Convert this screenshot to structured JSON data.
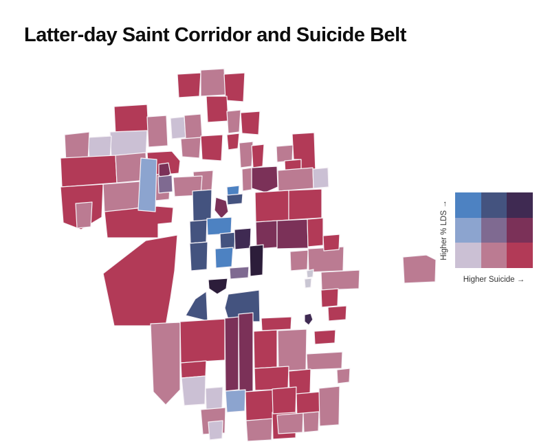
{
  "title": "Latter-day Saint Corridor and Suicide Belt",
  "legend": {
    "y_axis_label": "Higher % LDS →",
    "x_axis_label": "Higher Suicide →",
    "grid": [
      [
        "blue",
        "navy",
        "darkpurple"
      ],
      [
        "lightblue",
        "mutedpurple",
        "wine"
      ],
      [
        "pale",
        "rose",
        "crimson"
      ]
    ]
  },
  "palette": {
    "blue": "#4d82c2",
    "navy": "#44537f",
    "darkpurple": "#3f2a52",
    "lightblue": "#8ca4cf",
    "mutedpurple": "#7f6a91",
    "wine": "#7b3158",
    "pale": "#cbc0d4",
    "rose": "#bb7b92",
    "crimson": "#b23a57",
    "darkest": "#2c1d3a",
    "gray": "#c9c6d3"
  },
  "map": {
    "stroke_color": "#f7f3f7",
    "counties": [
      {
        "f": "crimson",
        "p": "166,155 214,152 216,192 168,196"
      },
      {
        "f": "rose",
        "p": "214,170 242,168 244,212 216,214"
      },
      {
        "f": "pale",
        "p": "160,192 214,190 212,228 162,230"
      },
      {
        "f": "pale",
        "p": "128,200 162,198 160,232 130,234"
      },
      {
        "f": "rose",
        "p": "94,196 130,192 128,234 96,238"
      },
      {
        "f": "crimson",
        "p": "88,230 168,226 170,266 90,272"
      },
      {
        "f": "rose",
        "p": "168,226 212,222 214,262 170,266"
      },
      {
        "f": "crimson",
        "p": "214,222 250,220 262,234 260,252 216,256"
      },
      {
        "f": "rose",
        "p": "204,256 248,252 246,290 206,294"
      },
      {
        "f": "crimson",
        "p": "88,272 150,268 148,316 118,334 92,324"
      },
      {
        "f": "rose",
        "p": "150,268 204,264 204,302 152,310"
      },
      {
        "f": "crimson",
        "p": "152,308 228,300 252,302 250,324 230,326 230,346 156,346"
      },
      {
        "f": "rose",
        "p": "110,296 134,294 132,330 112,332"
      },
      {
        "f": "crimson",
        "p": "258,108 292,106 290,140 260,142"
      },
      {
        "f": "rose",
        "p": "292,102 326,100 328,138 292,140"
      },
      {
        "f": "crimson",
        "p": "326,108 356,106 354,148 328,146"
      },
      {
        "f": "crimson",
        "p": "300,140 330,140 332,176 302,178"
      },
      {
        "f": "pale",
        "p": "248,172 268,170 270,200 250,202"
      },
      {
        "f": "rose",
        "p": "268,168 292,166 294,200 270,202"
      },
      {
        "f": "crimson",
        "p": "292,198 324,196 322,234 294,232"
      },
      {
        "f": "rose",
        "p": "263,202 292,200 290,230 265,228"
      },
      {
        "f": "rose",
        "p": "330,162 350,160 348,192 332,194"
      },
      {
        "f": "crimson",
        "p": "350,164 378,162 376,196 352,194"
      },
      {
        "f": "crimson",
        "p": "330,196 348,194 346,216 332,218"
      },
      {
        "f": "rose",
        "p": "348,208 368,206 366,242 350,244"
      },
      {
        "f": "crimson",
        "p": "366,212 384,210 382,242 368,244"
      },
      {
        "f": "rose",
        "p": "281,250 310,248 308,276 283,278"
      },
      {
        "f": "crimson",
        "p": "425,195 457,193 459,250 438,252 438,232 427,232"
      },
      {
        "f": "rose",
        "p": "402,213 426,211 425,234 403,236"
      },
      {
        "f": "crimson",
        "p": "414,234 438,232 438,252 415,254"
      },
      {
        "f": "wine",
        "p": "366,244 403,242 404,272 386,280 366,274"
      },
      {
        "f": "rose",
        "p": "352,246 366,244 366,276 353,278"
      },
      {
        "f": "rose",
        "p": "404,248 455,244 456,274 405,278"
      },
      {
        "f": "pale",
        "p": "455,246 477,244 478,272 456,274"
      },
      {
        "f": "crimson",
        "p": "371,280 420,277 420,320 372,323"
      },
      {
        "f": "crimson",
        "p": "420,277 468,275 468,317 420,320"
      },
      {
        "f": "wine",
        "p": "372,323 403,321 403,360 373,362"
      },
      {
        "f": "wine",
        "p": "403,321 447,319 448,361 403,362"
      },
      {
        "f": "crimson",
        "p": "447,319 470,317 470,357 448,359"
      },
      {
        "f": "lightblue",
        "p": "205,230 228,232 226,308 201,306"
      },
      {
        "f": "wine",
        "p": "231,239 245,237 248,253 238,262 231,255"
      },
      {
        "f": "mutedpurple",
        "p": "230,257 250,255 251,279 231,281"
      },
      {
        "f": "rose",
        "p": "252,258 294,256 292,284 254,286"
      },
      {
        "f": "navy",
        "p": "280,278 308,276 307,320 281,322"
      },
      {
        "f": "wine",
        "p": "314,287 329,292 332,308 322,318 312,306"
      },
      {
        "f": "navy",
        "p": "276,322 301,320 300,352 277,354"
      },
      {
        "f": "blue",
        "p": "301,318 337,316 336,340 302,342"
      },
      {
        "f": "navy",
        "p": "320,340 342,338 341,362 321,364"
      },
      {
        "f": "blue",
        "p": "313,362 339,360 337,388 314,390"
      },
      {
        "f": "navy",
        "p": "276,354 302,352 301,392 278,394"
      },
      {
        "f": "darkpurple",
        "p": "341,334 365,332 364,361 342,363"
      },
      {
        "f": "darkest",
        "p": "363,358 383,356 382,400 364,402"
      },
      {
        "f": "mutedpurple",
        "p": "334,390 362,388 361,404 335,406"
      },
      {
        "f": "darkest",
        "p": "303,407 331,405 329,420 316,428 304,420"
      },
      {
        "f": "blue",
        "p": "330,272 348,270 347,284 331,286"
      },
      {
        "f": "navy",
        "p": "330,284 353,282 352,296 331,298"
      },
      {
        "f": "navy",
        "p": "300,424 302,467 270,459 284,435"
      },
      {
        "f": "navy",
        "p": "332,428 377,422 378,468 333,468 327,448"
      },
      {
        "f": "crimson",
        "p": "150,398 212,350 258,342 254,394 248,434 241,474 166,474"
      },
      {
        "f": "rose",
        "p": "219,471 262,469 262,567 241,589 223,570"
      },
      {
        "f": "crimson",
        "p": "262,468 327,464 327,524 263,528"
      },
      {
        "f": "crimson",
        "p": "263,528 300,525 299,547 264,550"
      },
      {
        "f": "wine",
        "p": "327,463 347,461 347,567 328,569"
      },
      {
        "f": "wine",
        "p": "347,457 368,455 368,569 348,571"
      },
      {
        "f": "pale",
        "p": "264,550 299,547 298,588 268,590"
      },
      {
        "f": "pale",
        "p": "299,565 324,563 323,594 300,596"
      },
      {
        "f": "lightblue",
        "p": "328,569 357,567 356,598 330,600"
      },
      {
        "f": "rose",
        "p": "292,596 328,593 327,630 295,632"
      },
      {
        "f": "pale",
        "p": "303,614 324,612 323,638 305,640"
      },
      {
        "f": "crimson",
        "p": "357,570 400,567 399,610 358,612"
      },
      {
        "f": "rose",
        "p": "358,612 396,609 395,640 360,642"
      },
      {
        "f": "crimson",
        "p": "396,600 431,597 430,637 397,639"
      },
      {
        "f": "crimson",
        "p": "369,482 403,480 403,534 370,536"
      },
      {
        "f": "crimson",
        "p": "380,463 424,461 423,479 381,481"
      },
      {
        "f": "darkpurple",
        "p": "443,458 452,456 455,465 449,473 443,468"
      },
      {
        "f": "rose",
        "p": "404,481 446,479 445,538 405,540"
      },
      {
        "f": "crimson",
        "p": "457,482 488,480 487,499 458,501"
      },
      {
        "f": "rose",
        "p": "446,515 498,512 497,536 447,538"
      },
      {
        "f": "rose",
        "p": "490,538 509,536 508,556 491,558"
      },
      {
        "f": "crimson",
        "p": "370,536 420,533 419,566 371,568"
      },
      {
        "f": "crimson",
        "p": "420,540 452,537 451,573 421,575"
      },
      {
        "f": "crimson",
        "p": "396,566 431,563 430,600 397,602"
      },
      {
        "f": "crimson",
        "p": "431,573 466,570 465,609 432,611"
      },
      {
        "f": "rose",
        "p": "403,604 441,601 440,629 405,631"
      },
      {
        "f": "rose",
        "p": "441,601 464,599 463,627 442,629"
      },
      {
        "f": "rose",
        "p": "464,565 494,562 493,618 465,620"
      },
      {
        "f": "rose",
        "p": "448,362 500,359 499,394 449,396"
      },
      {
        "f": "rose",
        "p": "467,396 523,393 522,420 468,422"
      },
      {
        "f": "crimson",
        "p": "470,343 494,341 493,363 471,365"
      },
      {
        "f": "gray",
        "p": "446,394 456,392 455,403 447,404"
      },
      {
        "f": "gray",
        "p": "443,406 453,405 452,418 444,419"
      },
      {
        "f": "crimson",
        "p": "467,422 492,420 491,445 468,447"
      },
      {
        "f": "crimson",
        "p": "477,447 504,445 503,465 478,467"
      },
      {
        "f": "rose",
        "p": "422,366 448,364 447,392 423,394"
      },
      {
        "f": "rose",
        "p": "586,374 620,371 634,378 633,410 588,412"
      }
    ]
  }
}
